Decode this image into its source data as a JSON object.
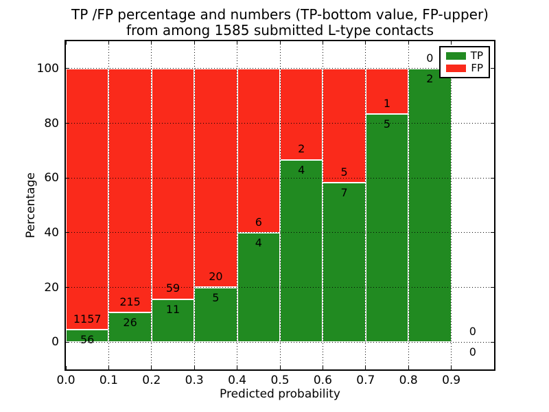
{
  "chart_data": {
    "type": "bar",
    "stacked": true,
    "normalized": "percent",
    "title_line1": "TP /FP percentage and numbers (TP-bottom value, FP-upper)",
    "title_line2": "from among 1585 submitted L-type contacts",
    "xlabel": "Predicted probability",
    "ylabel": "Percentage",
    "xlim": [
      0.0,
      1.0
    ],
    "ylim": [
      -10,
      110
    ],
    "grid": true,
    "xticks": [
      {
        "value": 0.0,
        "label": "0.0"
      },
      {
        "value": 0.1,
        "label": "0.1"
      },
      {
        "value": 0.2,
        "label": "0.2"
      },
      {
        "value": 0.3,
        "label": "0.3"
      },
      {
        "value": 0.4,
        "label": "0.4"
      },
      {
        "value": 0.5,
        "label": "0.5"
      },
      {
        "value": 0.6,
        "label": "0.6"
      },
      {
        "value": 0.7,
        "label": "0.7"
      },
      {
        "value": 0.8,
        "label": "0.8"
      },
      {
        "value": 0.9,
        "label": "0.9"
      }
    ],
    "yticks": [
      {
        "value": 0,
        "label": "0"
      },
      {
        "value": 20,
        "label": "20"
      },
      {
        "value": 40,
        "label": "40"
      },
      {
        "value": 60,
        "label": "60"
      },
      {
        "value": 80,
        "label": "80"
      },
      {
        "value": 100,
        "label": "100"
      }
    ],
    "colors": {
      "tp": "#218a21",
      "fp": "#fa2a1b"
    },
    "legend": {
      "position": "upper right",
      "entries": [
        {
          "label": "TP",
          "series": "tp"
        },
        {
          "label": "FP",
          "series": "fp"
        }
      ]
    },
    "bins": [
      {
        "range": [
          0.0,
          0.1
        ],
        "tp": 56,
        "fp": 1157
      },
      {
        "range": [
          0.1,
          0.2
        ],
        "tp": 26,
        "fp": 215
      },
      {
        "range": [
          0.2,
          0.3
        ],
        "tp": 11,
        "fp": 59
      },
      {
        "range": [
          0.3,
          0.4
        ],
        "tp": 5,
        "fp": 20
      },
      {
        "range": [
          0.4,
          0.5
        ],
        "tp": 4,
        "fp": 6
      },
      {
        "range": [
          0.5,
          0.6
        ],
        "tp": 4,
        "fp": 2
      },
      {
        "range": [
          0.6,
          0.7
        ],
        "tp": 7,
        "fp": 5
      },
      {
        "range": [
          0.7,
          0.8
        ],
        "tp": 5,
        "fp": 1
      },
      {
        "range": [
          0.8,
          0.9
        ],
        "tp": 2,
        "fp": 0
      },
      {
        "range": [
          0.9,
          1.0
        ],
        "tp": 0,
        "fp": 0
      }
    ]
  }
}
